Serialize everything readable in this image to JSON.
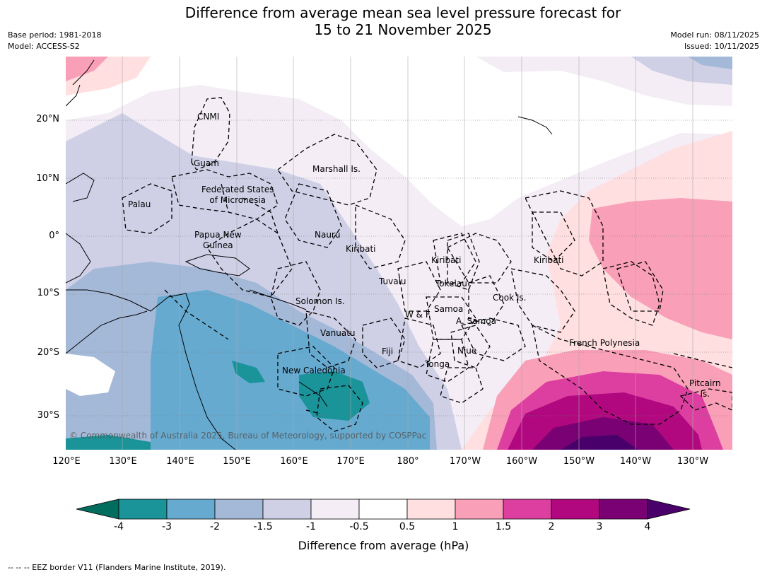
{
  "title_line1": "Difference from average mean sea level pressure forecast for",
  "title_line2": "15 to 21 November 2025",
  "meta_left": [
    "Base period: 1981-2018",
    "Model: ACCESS-S2"
  ],
  "meta_right": [
    "Model run: 08/11/2025",
    "Issued: 10/11/2025"
  ],
  "lat_labels": [
    "20°N",
    "10°N",
    "0°",
    "10°S",
    "20°S",
    "30°S"
  ],
  "lon_labels": [
    "120°E",
    "130°E",
    "140°E",
    "150°E",
    "160°E",
    "170°E",
    "180°",
    "170°W",
    "160°W",
    "150°W",
    "140°W",
    "130°W"
  ],
  "places": [
    {
      "name": "cnmi",
      "text": "CNMI"
    },
    {
      "name": "guam",
      "text": "Guam"
    },
    {
      "name": "marshall",
      "text": "Marshall Is."
    },
    {
      "name": "fsm",
      "text": "Federated States\nof Micronesia"
    },
    {
      "name": "palau",
      "text": "Palau"
    },
    {
      "name": "png",
      "text": "Papua New\nGuinea"
    },
    {
      "name": "nauru",
      "text": "Nauru"
    },
    {
      "name": "kiribati-west",
      "text": "Kiribati"
    },
    {
      "name": "kiribati-central",
      "text": "Kiribati"
    },
    {
      "name": "kiribati-east",
      "text": "Kiribati"
    },
    {
      "name": "tuvalu",
      "text": "Tuvalu"
    },
    {
      "name": "tokelau",
      "text": "Tokelau"
    },
    {
      "name": "cook",
      "text": "Cook Is."
    },
    {
      "name": "solomon",
      "text": "Solomon Is."
    },
    {
      "name": "wallis-futuna",
      "text": "W & F"
    },
    {
      "name": "samoa",
      "text": "Samoa"
    },
    {
      "name": "american-samoa",
      "text": "A. Samoa"
    },
    {
      "name": "vanuatu",
      "text": "Vanuatu"
    },
    {
      "name": "fiji",
      "text": "Fiji"
    },
    {
      "name": "niue",
      "text": "Niue"
    },
    {
      "name": "french-polynesia",
      "text": "French Polynesia"
    },
    {
      "name": "tonga",
      "text": "Tonga"
    },
    {
      "name": "new-caledonia",
      "text": "New Caledonia"
    },
    {
      "name": "pitcairn",
      "text": "Pitcairn\nIs."
    }
  ],
  "copyright": "© Commonwealth of Australia 2025, Bureau of Meteorology, supported by COSPPac",
  "colorbar": {
    "ticks": [
      "-4",
      "-3",
      "-2",
      "-1.5",
      "-1",
      "-0.5",
      "0.5",
      "1",
      "1.5",
      "2",
      "3",
      "4"
    ],
    "colors": [
      "#1a9399",
      "#66aad0",
      "#a4b9d8",
      "#cfd0e6",
      "#f4edf6",
      "#ffffff",
      "#ffdfe0",
      "#f99fb8",
      "#dd3fa0",
      "#b1087f",
      "#7a0173"
    ],
    "under_color": "#006d5f",
    "over_color": "#4a006a",
    "label": "Difference from average (hPa)"
  },
  "footnote": "--  --  -- EEZ border V11 (Flanders Marine Institute, 2019)."
}
